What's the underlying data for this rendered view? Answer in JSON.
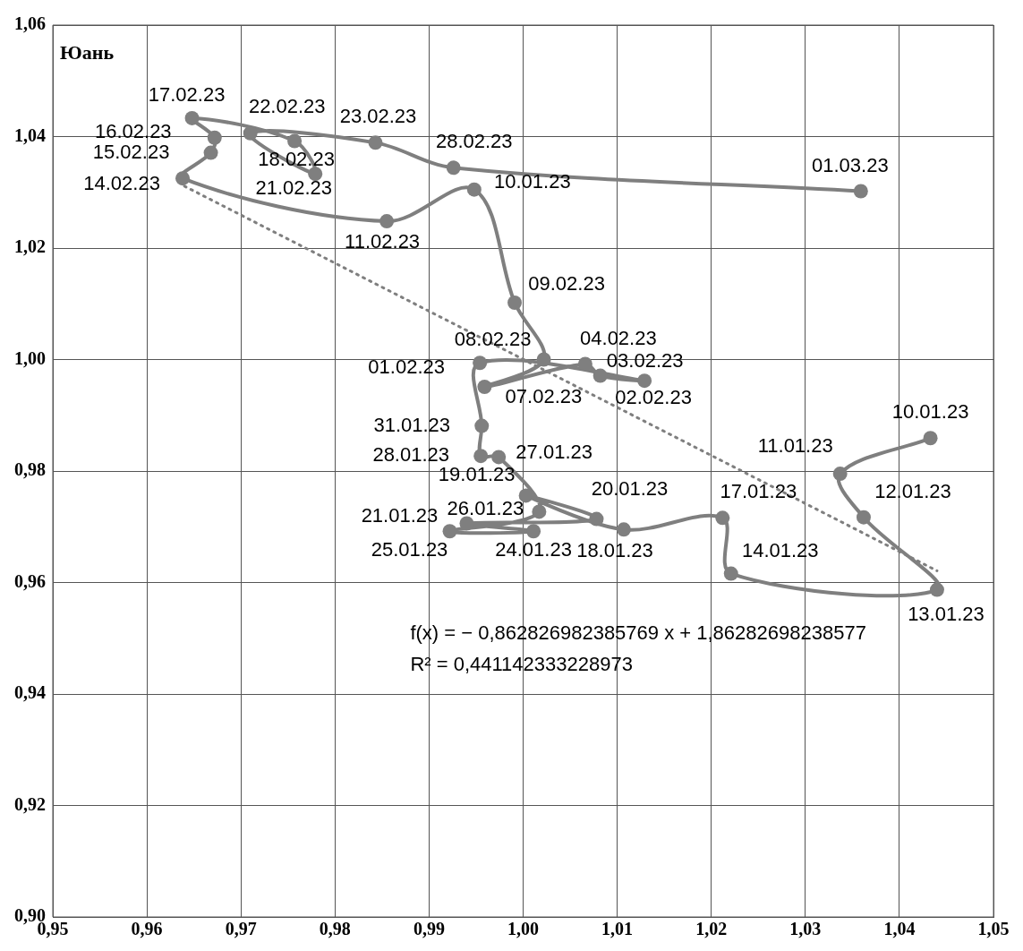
{
  "chart_data": {
    "type": "line",
    "ylabel": "Юань",
    "xlim": [
      0.95,
      1.05
    ],
    "xticks": [
      {
        "value": 0.95,
        "label": "0,95"
      },
      {
        "value": 0.96,
        "label": "0,96"
      },
      {
        "value": 0.97,
        "label": "0,97"
      },
      {
        "value": 0.98,
        "label": "0,98"
      },
      {
        "value": 0.99,
        "label": "0,99"
      },
      {
        "value": 1.0,
        "label": "1,00"
      },
      {
        "value": 1.01,
        "label": "1,01"
      },
      {
        "value": 1.02,
        "label": "1,02"
      },
      {
        "value": 1.03,
        "label": "1,03"
      },
      {
        "value": 1.04,
        "label": "1,04"
      },
      {
        "value": 1.05,
        "label": "1,05"
      }
    ],
    "ylim": [
      0.9,
      1.06
    ],
    "yticks": [
      {
        "value": 0.9,
        "label": "0,90"
      },
      {
        "value": 0.92,
        "label": "0,92"
      },
      {
        "value": 0.94,
        "label": "0,94"
      },
      {
        "value": 0.96,
        "label": "0,96"
      },
      {
        "value": 0.98,
        "label": "0,98"
      },
      {
        "value": 1.0,
        "label": "1,00"
      },
      {
        "value": 1.02,
        "label": "1,02"
      },
      {
        "value": 1.04,
        "label": "1,04"
      },
      {
        "value": 1.06,
        "label": "1,06"
      }
    ],
    "grid": true,
    "legend": false,
    "series": [
      {
        "color": "#7f7f7f",
        "marker": "circle",
        "line_style": "solid",
        "x": [
          1.0433,
          1.0337,
          1.0362,
          1.044,
          1.0221,
          1.0212,
          1.0107,
          1.0003,
          1.0078,
          0.994,
          1.0011,
          0.9922,
          1.0017,
          0.9974,
          0.9955,
          0.9956,
          0.9954,
          1.0129,
          1.0082,
          1.0066,
          0.9959,
          1.0022,
          0.9991,
          0.9948,
          0.9855,
          0.9638,
          0.9668,
          0.9672,
          0.9648,
          0.9757,
          0.9779,
          0.971,
          0.9843,
          0.9926,
          1.0359
        ],
        "values": [
          0.9859,
          0.9795,
          0.9717,
          0.9587,
          0.9616,
          0.9716,
          0.9695,
          0.9756,
          0.9714,
          0.9706,
          0.9692,
          0.9692,
          0.9727,
          0.9825,
          0.9827,
          0.9881,
          0.9994,
          0.9962,
          0.9971,
          0.9992,
          0.9951,
          1.0,
          1.0102,
          1.0305,
          1.0248,
          1.0325,
          1.0371,
          1.0398,
          1.0433,
          1.0392,
          1.0333,
          1.0406,
          1.0389,
          1.0344,
          1.0302
        ]
      },
      {
        "color": "#7f7f7f",
        "marker": "none",
        "line_style": "dotted",
        "x": [
          0.964,
          1.044
        ],
        "values": [
          1.0311,
          0.9621
        ]
      }
    ],
    "annotations": [
      "f(x) = − 0,862826982385769 x + 1,86282698238577",
      "R² = 0,441142333228973",
      {
        "text": "10.01.23",
        "x": 1.0433,
        "y": 0.9859
      },
      {
        "text": "11.01.23",
        "x": 1.0337,
        "y": 0.9795
      },
      {
        "text": "12.01.23",
        "x": 1.0362,
        "y": 0.9717
      },
      {
        "text": "13.01.23",
        "x": 1.044,
        "y": 0.9587
      },
      {
        "text": "14.01.23",
        "x": 1.0221,
        "y": 0.9616
      },
      {
        "text": "17.01.23",
        "x": 1.0212,
        "y": 0.9716
      },
      {
        "text": "18.01.23",
        "x": 1.0107,
        "y": 0.9695
      },
      {
        "text": "19.01.23",
        "x": 1.0003,
        "y": 0.9756
      },
      {
        "text": "20.01.23",
        "x": 1.0078,
        "y": 0.9714
      },
      {
        "text": "21.01.23",
        "x": 0.994,
        "y": 0.9706
      },
      {
        "text": "24.01.23",
        "x": 1.0011,
        "y": 0.9692
      },
      {
        "text": "25.01.23",
        "x": 0.9922,
        "y": 0.9692
      },
      {
        "text": "26.01.23",
        "x": 1.0017,
        "y": 0.9727
      },
      {
        "text": "27.01.23",
        "x": 0.9974,
        "y": 0.9825
      },
      {
        "text": "28.01.23",
        "x": 0.9955,
        "y": 0.9827
      },
      {
        "text": "31.01.23",
        "x": 0.9956,
        "y": 0.9881
      },
      {
        "text": "01.02.23",
        "x": 0.9954,
        "y": 0.9994
      },
      {
        "text": "02.02.23",
        "x": 1.0129,
        "y": 0.9962
      },
      {
        "text": "03.02.23",
        "x": 1.0082,
        "y": 0.9971
      },
      {
        "text": "04.02.23",
        "x": 1.0066,
        "y": 0.9992
      },
      {
        "text": "07.02.23",
        "x": 0.9959,
        "y": 0.9951
      },
      {
        "text": "08.02.23",
        "x": 1.0022,
        "y": 1.0
      },
      {
        "text": "09.02.23",
        "x": 0.9991,
        "y": 1.0102
      },
      {
        "text": "10.01.23",
        "x": 0.9948,
        "y": 1.0305
      },
      {
        "text": "11.02.23",
        "x": 0.9855,
        "y": 1.0248
      },
      {
        "text": "14.02.23",
        "x": 0.9638,
        "y": 1.0325
      },
      {
        "text": "15.02.23",
        "x": 0.9668,
        "y": 1.0371
      },
      {
        "text": "16.02.23",
        "x": 0.9672,
        "y": 1.0398
      },
      {
        "text": "17.02.23",
        "x": 0.9648,
        "y": 1.0433
      },
      {
        "text": "18.02.23",
        "x": 0.9757,
        "y": 1.0392
      },
      {
        "text": "21.02.23",
        "x": 0.9779,
        "y": 1.0333
      },
      {
        "text": "22.02.23",
        "x": 0.971,
        "y": 1.0406
      },
      {
        "text": "23.02.23",
        "x": 0.9843,
        "y": 1.0389
      },
      {
        "text": "28.02.23",
        "x": 0.9926,
        "y": 1.0344
      },
      {
        "text": "01.03.23",
        "x": 1.0359,
        "y": 1.0302
      }
    ]
  }
}
